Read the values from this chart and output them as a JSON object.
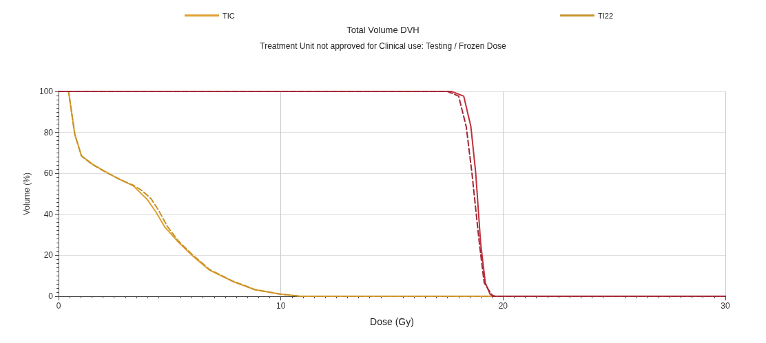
{
  "chart_data": {
    "type": "line",
    "title": "Total Volume DVH",
    "subtitle": "Treatment Unit not approved for Clinical use: Testing / Frozen Dose",
    "xlabel": "Dose (Gy)",
    "ylabel": "Volume (%)",
    "xlim": [
      0,
      30
    ],
    "xticks": [
      0,
      10,
      20,
      30
    ],
    "ylim": [
      0,
      100
    ],
    "yticks": [
      0,
      20,
      40,
      60,
      80,
      100
    ],
    "grid": true,
    "legend": "top",
    "marker": "none",
    "series": [
      {
        "name": "TIC",
        "color": "#e0a030",
        "line_style": "solid",
        "x": [
          0,
          0.45,
          0.73,
          1.03,
          1.54,
          2.05,
          2.76,
          3.36,
          3.97,
          4.38,
          4.78,
          5.39,
          6.0,
          6.8,
          7.8,
          8.83,
          10,
          10.9,
          20
        ],
        "values": [
          100,
          100,
          79.2,
          68.6,
          64.4,
          61.2,
          57,
          53.9,
          47.5,
          41.2,
          33.8,
          26.4,
          20,
          12.7,
          7.4,
          3.2,
          1,
          0,
          0
        ]
      },
      {
        "name": "TI22",
        "color": "#c8922a",
        "line_style": "dashed",
        "x": [
          0,
          0.45,
          0.73,
          1.03,
          1.54,
          2.05,
          2.76,
          3.36,
          3.77,
          4.17,
          4.5,
          4.9,
          5.39,
          6.0,
          6.8,
          7.8,
          8.83,
          10,
          10.9,
          20
        ],
        "values": [
          100,
          100,
          79,
          68.4,
          64.2,
          61,
          57,
          54.2,
          51.5,
          47.5,
          42,
          34,
          27,
          20.5,
          13,
          7.6,
          3.3,
          1,
          0,
          0
        ]
      },
      {
        "color": "#c0303a",
        "line_style": "solid",
        "x": [
          0,
          17.68,
          18.23,
          18.55,
          18.77,
          18.99,
          19.2,
          19.42,
          19.64,
          30
        ],
        "values": [
          100,
          100,
          97.7,
          82.9,
          60,
          26,
          6.6,
          0.9,
          0,
          0
        ]
      },
      {
        "color": "#a02838",
        "line_style": "dashed",
        "x": [
          0,
          17.5,
          18.0,
          18.34,
          18.6,
          18.93,
          19.15,
          19.53,
          30
        ],
        "values": [
          100,
          100,
          97.7,
          82.9,
          60,
          26,
          6.6,
          0,
          0
        ]
      }
    ]
  }
}
